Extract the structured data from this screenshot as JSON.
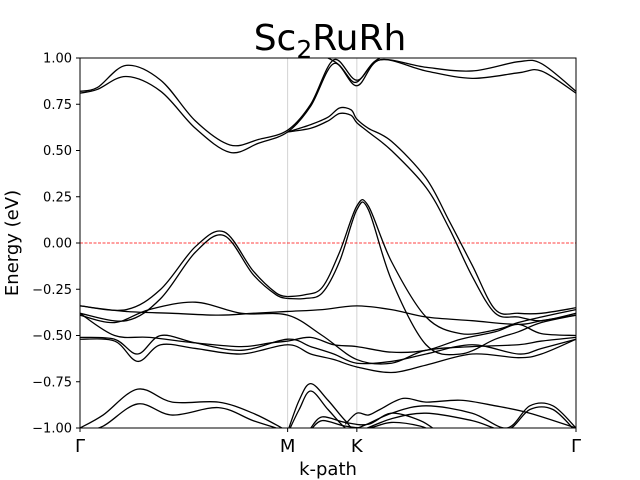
{
  "chart_data": {
    "type": "line",
    "title": "Sc₂RuRh",
    "title_main": "Sc",
    "title_sub": "2",
    "title_rest": "RuRh",
    "xlabel": "k-path",
    "ylabel": "Energy (eV)",
    "ylim": [
      -1.0,
      1.0
    ],
    "xlim": [
      0,
      4.3
    ],
    "yticks": [
      {
        "value": 1.0,
        "label": "1.00"
      },
      {
        "value": 0.75,
        "label": "0.75"
      },
      {
        "value": 0.5,
        "label": "0.50"
      },
      {
        "value": 0.25,
        "label": "0.25"
      },
      {
        "value": 0.0,
        "label": "0.00"
      },
      {
        "value": -0.25,
        "label": "−0.25"
      },
      {
        "value": -0.5,
        "label": "−0.50"
      },
      {
        "value": -0.75,
        "label": "−0.75"
      },
      {
        "value": -1.0,
        "label": "−1.00"
      }
    ],
    "high_symmetry_points": [
      {
        "label": "Γ",
        "x": 0.0
      },
      {
        "label": "M",
        "x": 1.8
      },
      {
        "label": "K",
        "x": 2.4
      },
      {
        "label": "Γ",
        "x": 4.3
      }
    ],
    "fermi_level": 0.0,
    "colors": {
      "bands": "#000000",
      "fermi": "#ff0000",
      "vlines": "#d3d3d3"
    },
    "series": [
      {
        "x": [
          0,
          0.15,
          0.4,
          0.7,
          1.0,
          1.3,
          1.55,
          1.8,
          2.0,
          2.2,
          2.4,
          2.6,
          3.0,
          3.4,
          3.8,
          4.0,
          4.3
        ],
        "values": [
          0.82,
          0.84,
          0.96,
          0.88,
          0.66,
          0.53,
          0.56,
          0.61,
          0.75,
          0.99,
          0.88,
          0.99,
          0.95,
          0.93,
          0.98,
          0.97,
          0.82
        ]
      },
      {
        "x": [
          0,
          0.15,
          0.4,
          0.7,
          1.0,
          1.3,
          1.55,
          1.8,
          2.0,
          2.2,
          2.4,
          2.6,
          3.0,
          3.4,
          3.8,
          4.0,
          4.3
        ],
        "values": [
          0.81,
          0.83,
          0.9,
          0.82,
          0.62,
          0.49,
          0.54,
          0.6,
          0.74,
          0.97,
          0.85,
          0.99,
          0.93,
          0.89,
          0.92,
          0.93,
          0.81
        ]
      },
      {
        "x": [
          1.8,
          1.95,
          2.1,
          2.25,
          2.4,
          2.5,
          2.7,
          3.0,
          3.3,
          3.6,
          3.8,
          4.0,
          4.3
        ],
        "values": [
          -0.29,
          -0.28,
          -0.24,
          -0.05,
          0.2,
          0.2,
          -0.1,
          -0.4,
          -0.49,
          -0.47,
          -0.43,
          -0.4,
          -0.36
        ]
      },
      {
        "x": [
          1.8,
          1.95,
          2.1,
          2.25,
          2.4,
          2.5,
          2.7,
          3.0,
          3.3,
          3.6,
          3.8,
          4.0,
          4.3
        ],
        "values": [
          -0.3,
          -0.3,
          -0.27,
          -0.1,
          0.18,
          0.18,
          -0.2,
          -0.55,
          -0.6,
          -0.52,
          -0.48,
          -0.43,
          -0.39
        ]
      },
      {
        "x": [
          0,
          0.4,
          0.7,
          1.0,
          1.25,
          1.5,
          1.7,
          1.8
        ],
        "values": [
          -0.34,
          -0.36,
          -0.25,
          -0.02,
          0.06,
          -0.15,
          -0.27,
          -0.29
        ]
      },
      {
        "x": [
          0,
          0.4,
          0.7,
          1.0,
          1.25,
          1.5,
          1.7,
          1.8
        ],
        "values": [
          -0.38,
          -0.42,
          -0.3,
          -0.05,
          0.04,
          -0.17,
          -0.28,
          -0.3
        ]
      },
      {
        "x": [
          1.8,
          2.0,
          2.15,
          2.25,
          2.35,
          2.4,
          2.5,
          2.7,
          3.0,
          3.2,
          3.4,
          3.6,
          3.8,
          4.0,
          4.3
        ],
        "values": [
          0.6,
          0.64,
          0.68,
          0.73,
          0.72,
          0.67,
          0.62,
          0.55,
          0.35,
          0.12,
          -0.12,
          -0.36,
          -0.38,
          -0.38,
          -0.35
        ]
      },
      {
        "x": [
          1.8,
          2.0,
          2.15,
          2.25,
          2.35,
          2.4,
          2.5,
          2.7,
          3.0,
          3.2,
          3.4,
          3.6,
          3.8,
          4.0,
          4.3
        ],
        "values": [
          0.6,
          0.62,
          0.66,
          0.7,
          0.69,
          0.65,
          0.6,
          0.5,
          0.3,
          0.08,
          -0.18,
          -0.38,
          -0.4,
          -0.42,
          -0.38
        ]
      },
      {
        "x": [
          0,
          0.4,
          0.8,
          1.2,
          1.5,
          1.8,
          2.1,
          2.4,
          2.7,
          3.0,
          3.4,
          3.8,
          4.0,
          4.3
        ],
        "values": [
          -0.34,
          -0.37,
          -0.38,
          -0.39,
          -0.38,
          -0.37,
          -0.36,
          -0.34,
          -0.36,
          -0.4,
          -0.42,
          -0.44,
          -0.42,
          -0.39
        ]
      },
      {
        "x": [
          0,
          0.3,
          0.6,
          1.0,
          1.4,
          1.8,
          2.1,
          2.4,
          2.7,
          3.0,
          3.4,
          3.8,
          4.0,
          4.3
        ],
        "values": [
          -0.39,
          -0.43,
          -0.36,
          -0.32,
          -0.38,
          -0.39,
          -0.5,
          -0.63,
          -0.65,
          -0.58,
          -0.56,
          -0.55,
          -0.53,
          -0.51
        ]
      },
      {
        "x": [
          0,
          0.3,
          0.5,
          0.7,
          1.0,
          1.4,
          1.8,
          2.0,
          2.2,
          2.4,
          2.7,
          3.0,
          3.4,
          3.8,
          4.0,
          4.3
        ],
        "values": [
          -0.51,
          -0.52,
          -0.6,
          -0.5,
          -0.54,
          -0.58,
          -0.52,
          -0.56,
          -0.6,
          -0.65,
          -0.64,
          -0.6,
          -0.55,
          -0.6,
          -0.57,
          -0.52
        ]
      },
      {
        "x": [
          0,
          0.3,
          0.5,
          0.7,
          1.0,
          1.4,
          1.8,
          2.0,
          2.2,
          2.4,
          2.7,
          3.0,
          3.4,
          3.8,
          4.0,
          4.3
        ],
        "values": [
          -0.52,
          -0.53,
          -0.64,
          -0.55,
          -0.57,
          -0.6,
          -0.55,
          -0.6,
          -0.63,
          -0.67,
          -0.7,
          -0.66,
          -0.6,
          -0.62,
          -0.6,
          -0.52
        ]
      },
      {
        "x": [
          0,
          0.3,
          0.6,
          1.0,
          1.4,
          1.65,
          1.8,
          2.0,
          2.2,
          2.4,
          2.7,
          3.0,
          3.3,
          3.6,
          3.8,
          4.0,
          4.3
        ],
        "values": [
          -0.38,
          -0.5,
          -0.51,
          -0.54,
          -0.56,
          -0.54,
          -0.53,
          -0.51,
          -0.55,
          -0.56,
          -0.59,
          -0.58,
          -0.52,
          -0.48,
          -0.44,
          -0.49,
          -0.5
        ]
      },
      {
        "x": [
          0,
          0.2,
          0.5,
          0.8,
          1.2,
          1.5,
          1.75,
          1.8
        ],
        "values": [
          -1.0,
          -0.93,
          -0.79,
          -0.86,
          -0.86,
          -0.92,
          -1.0,
          -1.02
        ]
      },
      {
        "x": [
          0,
          0.2,
          0.5,
          0.8,
          1.2,
          1.5,
          1.75,
          1.8
        ],
        "values": [
          -1.02,
          -0.99,
          -0.87,
          -0.93,
          -0.89,
          -0.96,
          -1.01,
          -1.03
        ]
      },
      {
        "x": [
          1.8,
          1.9,
          2.0,
          2.15,
          2.3,
          2.4,
          2.7,
          3.0,
          3.4,
          3.7,
          3.9,
          4.1,
          4.3
        ],
        "values": [
          -1.02,
          -0.85,
          -0.76,
          -0.85,
          -0.96,
          -1.0,
          -0.92,
          -0.88,
          -0.92,
          -1.0,
          -0.88,
          -0.88,
          -1.0
        ]
      },
      {
        "x": [
          1.8,
          1.9,
          2.0,
          2.15,
          2.3,
          2.4,
          2.7,
          3.0,
          3.4,
          3.7,
          3.9,
          4.1,
          4.3
        ],
        "values": [
          -1.03,
          -0.9,
          -0.8,
          -0.9,
          -1.0,
          -1.02,
          -0.95,
          -0.92,
          -0.96,
          -1.01,
          -0.9,
          -0.9,
          -1.02
        ]
      },
      {
        "x": [
          2.3,
          2.4,
          2.5,
          2.6,
          2.8,
          3.0,
          3.3,
          3.6,
          3.9,
          4.3
        ],
        "values": [
          -0.98,
          -0.92,
          -0.93,
          -0.9,
          -0.84,
          -0.86,
          -0.85,
          -0.88,
          -0.92,
          -1.0
        ]
      },
      {
        "x": [
          2.0,
          2.1,
          2.3,
          2.5,
          2.7,
          2.95,
          3.1
        ],
        "values": [
          -1.0,
          -0.94,
          -0.97,
          -0.98,
          -0.92,
          -0.96,
          -1.02
        ]
      },
      {
        "x": [
          2.0,
          2.1,
          2.3,
          2.5,
          2.7,
          2.95,
          3.1
        ],
        "values": [
          -1.01,
          -0.96,
          -0.99,
          -1.0,
          -0.97,
          -0.99,
          -1.03
        ]
      },
      {
        "x": [
          2.05,
          2.15,
          2.25,
          2.35,
          2.4,
          2.45,
          2.55,
          2.7
        ],
        "values": [
          1.02,
          1.0,
          0.96,
          0.88,
          0.87,
          0.9,
          0.98,
          1.03
        ]
      }
    ]
  }
}
